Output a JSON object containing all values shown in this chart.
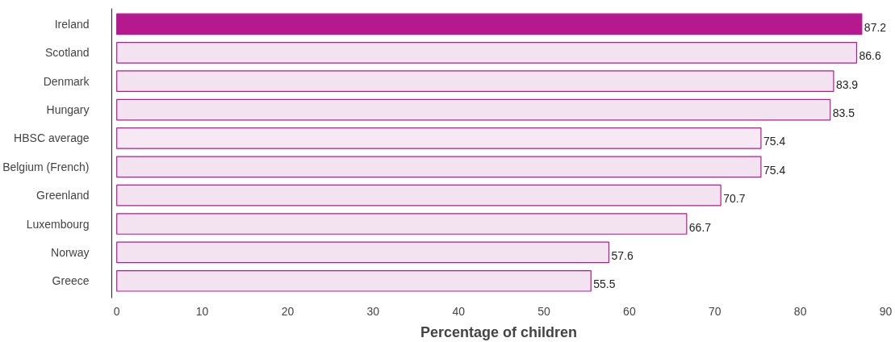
{
  "chart_data": {
    "type": "bar",
    "orientation": "horizontal",
    "xlabel": "Percentage of children",
    "categories": [
      "Ireland",
      "Scotland",
      "Denmark",
      "Hungary",
      "HBSC average",
      "Belgium (French)",
      "Greenland",
      "Luxembourg",
      "Norway",
      "Greece"
    ],
    "values": [
      87.2,
      86.6,
      83.9,
      83.5,
      75.4,
      75.4,
      70.7,
      66.7,
      57.6,
      55.5
    ],
    "colors": [
      "#b41a8e",
      "#f3e2f0",
      "#f3e2f0",
      "#f3e2f0",
      "#f6e9f3",
      "#f3e2f0",
      "#f3e2f0",
      "#f3e2f0",
      "#f3e2f0",
      "#f3e2f0"
    ],
    "xlim": [
      0,
      90
    ],
    "xticks": [
      0,
      10,
      20,
      30,
      40,
      50,
      60,
      70,
      80,
      90
    ],
    "data_labels": true,
    "grid": false
  }
}
